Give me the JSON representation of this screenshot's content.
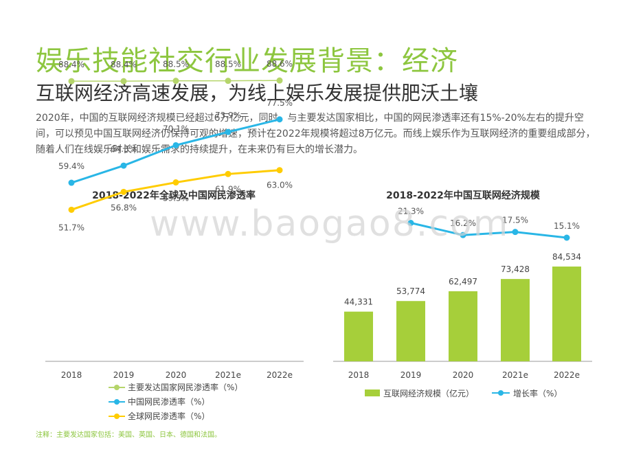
{
  "title": "娱乐技能社交行业发展背景：经济",
  "subtitle": "互联网经济高速发展，为线上娱乐发展提供肥沃土壤",
  "description": "2020年，中国的互联网经济规模已经超过6万亿元，同时，与主要发达国家相比，中国的网民渗透率还有15%-20%左右的提升空间，可以预见中国互联网经济仍保持可观的增速，预计在2022年规模将超过8万亿元。而线上娱乐作为互联网经济的重要组成部分，随着人们在线娱乐时长和娱乐需求的持续提升，在未来仍有巨大的增长潜力。",
  "watermark": "www.baogao8.com",
  "note": "注释：主要发达国家包括：美国、英国、日本、德国和法国。",
  "chart_data": [
    {
      "type": "line",
      "title": "2018-2022年全球及中国网民渗透率",
      "categories": [
        "2018",
        "2019",
        "2020",
        "2021e",
        "2022e"
      ],
      "series": [
        {
          "name": "主要发达国家网民渗透率（%）",
          "values": [
            88.4,
            88.4,
            88.5,
            88.5,
            88.6
          ],
          "labels": [
            "88.4%",
            "88.4%",
            "88.5%",
            "88.5%",
            "88.6%"
          ],
          "color": "#b5d56a"
        },
        {
          "name": "中国网民渗透率（%）",
          "values": [
            59.4,
            64.3,
            70.1,
            73.9,
            77.5
          ],
          "labels": [
            "59.4%",
            "64.3%",
            "70.1%",
            "73.9%",
            "77.5%"
          ],
          "color": "#29b6e6"
        },
        {
          "name": "全球网民渗透率（%）",
          "values": [
            51.7,
            56.8,
            59.5,
            61.9,
            63.0
          ],
          "labels": [
            "51.7%",
            "56.8%",
            "59.5%",
            "61.9%",
            "63.0%"
          ],
          "color": "#ffcc00"
        }
      ],
      "ylim": [
        30,
        95
      ],
      "grid": false,
      "legend": "bottom"
    },
    {
      "type": "bar",
      "title": "2018-2022年中国互联网经济规模",
      "categories": [
        "2018",
        "2019",
        "2020",
        "2021e",
        "2022e"
      ],
      "series": [
        {
          "name": "互联网经济规模（亿元）",
          "values": [
            44331,
            53774,
            62497,
            73428,
            84534
          ],
          "labels": [
            "44,331",
            "53,774",
            "62,497",
            "73,428",
            "84,534"
          ],
          "color": "#a6cf3a"
        },
        {
          "name": "增长率（%）",
          "values": [
            null,
            21.3,
            16.2,
            17.5,
            15.1
          ],
          "labels": [
            "",
            "21.3%",
            "16.2%",
            "17.5%",
            "15.1%"
          ],
          "color": "#29b6e6",
          "type": "line"
        }
      ],
      "ylim": [
        0,
        130000
      ],
      "grid": false,
      "legend": "bottom"
    }
  ]
}
